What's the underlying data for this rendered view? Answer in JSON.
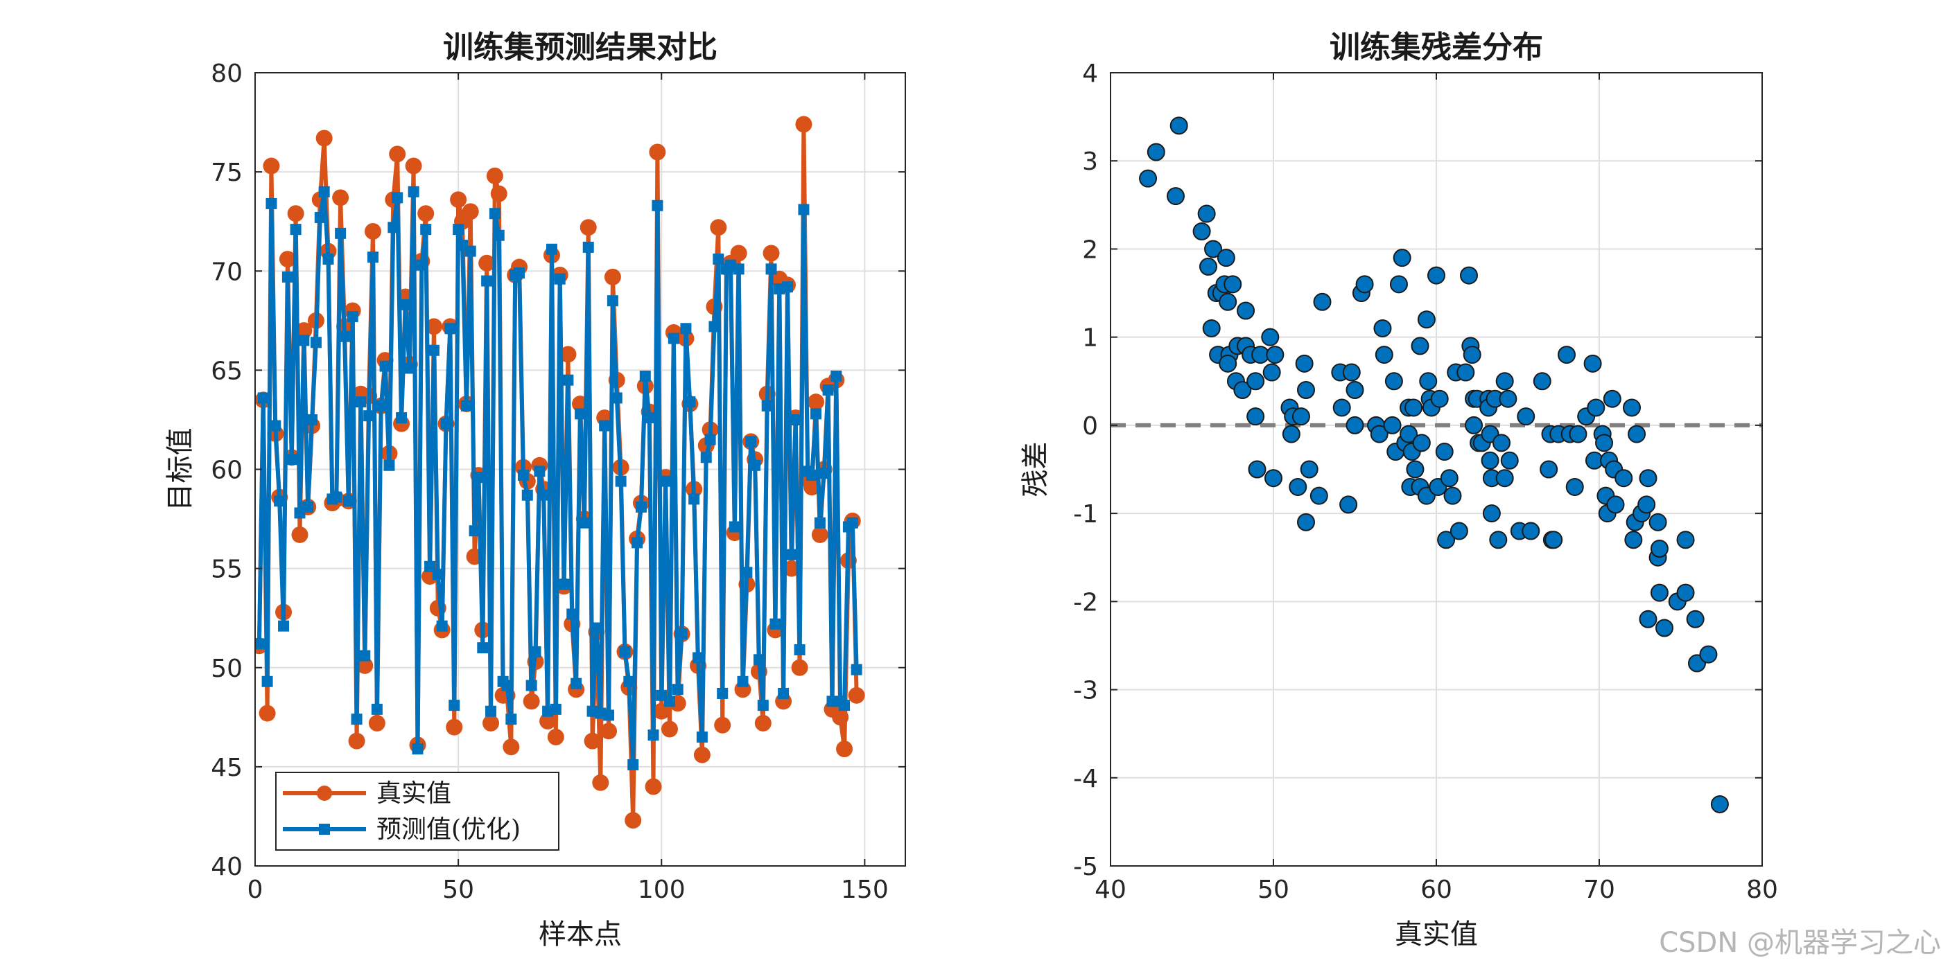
{
  "chart_data": [
    {
      "type": "line",
      "title": "训练集预测结果对比",
      "xlabel": "样本点",
      "ylabel": "目标值",
      "xlim": [
        0,
        160
      ],
      "ylim": [
        40,
        80
      ],
      "xticks": [
        0,
        50,
        100,
        150
      ],
      "yticks": [
        40,
        45,
        50,
        55,
        60,
        65,
        70,
        75,
        80
      ],
      "grid": true,
      "legend_position": "bottom-left",
      "series": [
        {
          "name": "真实值",
          "color": "#d95319",
          "marker": "circle",
          "values": [
            51.1,
            63.5,
            47.7,
            75.3,
            61.8,
            58.6,
            52.8,
            70.6,
            60.6,
            72.9,
            56.7,
            67.0,
            58.1,
            62.2,
            67.5,
            73.6,
            76.7,
            71.0,
            58.3,
            58.5,
            73.7,
            67.2,
            58.4,
            68.0,
            46.3,
            63.8,
            50.1,
            63.7,
            72.0,
            47.2,
            63.2,
            65.5,
            60.8,
            73.6,
            75.9,
            62.3,
            68.7,
            65.3,
            75.3,
            46.1,
            70.5,
            72.9,
            54.6,
            67.2,
            53.0,
            51.9,
            62.3,
            67.2,
            47.0,
            73.6,
            72.5,
            63.3,
            73.0,
            55.6,
            59.7,
            51.9,
            70.4,
            47.2,
            74.8,
            73.9,
            48.6,
            48.6,
            46.0,
            69.8,
            70.2,
            60.1,
            59.4,
            48.3,
            50.3,
            60.2,
            59.0,
            47.3,
            70.8,
            46.5,
            69.8,
            54.1,
            65.8,
            52.2,
            48.9,
            63.3,
            57.5,
            72.2,
            46.3,
            51.8,
            44.2,
            62.6,
            46.8,
            69.7,
            64.5,
            60.1,
            50.8,
            49.0,
            42.3,
            56.5,
            58.3,
            64.2,
            62.9,
            44.0,
            76.0,
            47.8,
            59.6,
            46.9,
            66.9,
            48.2,
            51.7,
            66.6,
            63.3,
            59.0,
            50.1,
            45.6,
            61.2,
            62.0,
            68.2,
            72.2,
            47.1,
            70.2,
            70.4,
            56.8,
            70.9,
            48.9,
            54.2,
            61.4,
            60.5,
            49.8,
            47.2,
            63.8,
            70.9,
            51.9,
            69.6,
            48.3,
            69.3,
            55.0,
            62.6,
            50.0,
            77.4,
            59.5,
            59.1,
            63.4,
            56.7,
            60.0,
            64.2,
            47.9,
            64.5,
            47.5,
            45.9,
            55.4,
            57.4,
            48.6
          ]
        },
        {
          "name": "预测值(优化)",
          "color": "#0072bd",
          "marker": "square",
          "values": [
            51.2,
            63.6,
            49.3,
            73.4,
            62.2,
            58.4,
            52.1,
            69.7,
            60.5,
            72.1,
            57.8,
            66.5,
            58.1,
            62.5,
            66.4,
            72.7,
            74.0,
            70.6,
            58.5,
            58.6,
            71.9,
            66.7,
            58.4,
            67.7,
            47.4,
            63.4,
            50.6,
            62.7,
            70.7,
            47.9,
            63.2,
            65.2,
            60.2,
            72.2,
            73.7,
            62.6,
            68.3,
            65.1,
            74.0,
            45.9,
            70.3,
            72.1,
            55.1,
            66.0,
            54.7,
            52.1,
            62.3,
            67.1,
            48.1,
            72.1,
            71.3,
            63.2,
            71.0,
            56.9,
            59.6,
            51.0,
            69.5,
            47.8,
            72.9,
            71.8,
            49.3,
            49.1,
            47.4,
            69.8,
            69.9,
            59.7,
            58.7,
            49.1,
            50.8,
            59.9,
            58.7,
            47.8,
            71.1,
            47.9,
            69.6,
            54.2,
            64.5,
            52.7,
            49.2,
            62.8,
            57.3,
            71.2,
            47.8,
            52.0,
            47.7,
            62.2,
            47.6,
            68.5,
            63.6,
            59.4,
            50.8,
            49.3,
            45.1,
            56.3,
            58.1,
            64.7,
            62.6,
            46.6,
            73.3,
            48.6,
            59.4,
            48.3,
            66.6,
            48.9,
            51.7,
            67.1,
            63.4,
            58.5,
            50.5,
            46.5,
            60.6,
            61.5,
            67.2,
            70.6,
            48.7,
            70.1,
            70.3,
            57.1,
            70.1,
            49.3,
            54.8,
            61.4,
            60.2,
            50.4,
            48.1,
            63.2,
            70.1,
            52.2,
            69.1,
            48.7,
            69.2,
            55.7,
            62.5,
            50.9,
            73.1,
            59.9,
            59.7,
            62.8,
            57.3,
            59.8,
            64.0,
            48.3,
            64.7,
            48.3,
            48.1,
            57.1,
            57.3,
            49.9
          ]
        }
      ]
    },
    {
      "type": "scatter",
      "title": "训练集残差分布",
      "xlabel": "真实值",
      "ylabel": "残差",
      "xlim": [
        40,
        80
      ],
      "ylim": [
        -5,
        4
      ],
      "xticks": [
        40,
        50,
        60,
        70,
        80
      ],
      "yticks": [
        -5,
        -4,
        -3,
        -2,
        -1,
        0,
        1,
        2,
        3,
        4
      ],
      "grid": true,
      "reference_line": {
        "y": 0,
        "style": "dashed",
        "color": "#808080"
      },
      "marker_color": "#0072bd",
      "points": [
        [
          42.3,
          2.8
        ],
        [
          42.8,
          3.1
        ],
        [
          44.2,
          3.4
        ],
        [
          44.0,
          2.6
        ],
        [
          45.6,
          2.2
        ],
        [
          45.9,
          2.4
        ],
        [
          46.3,
          2.0
        ],
        [
          46.0,
          1.8
        ],
        [
          46.5,
          1.5
        ],
        [
          46.8,
          1.5
        ],
        [
          47.0,
          1.6
        ],
        [
          47.2,
          1.4
        ],
        [
          47.1,
          1.9
        ],
        [
          47.5,
          1.6
        ],
        [
          46.2,
          1.1
        ],
        [
          46.6,
          0.8
        ],
        [
          47.3,
          0.8
        ],
        [
          47.8,
          0.9
        ],
        [
          47.2,
          0.7
        ],
        [
          47.7,
          0.5
        ],
        [
          48.1,
          0.4
        ],
        [
          48.3,
          0.9
        ],
        [
          48.6,
          0.8
        ],
        [
          48.3,
          1.3
        ],
        [
          48.9,
          0.5
        ],
        [
          49.2,
          0.8
        ],
        [
          49.8,
          1.0
        ],
        [
          49.9,
          0.6
        ],
        [
          48.9,
          0.1
        ],
        [
          49.0,
          -0.5
        ],
        [
          50.0,
          -0.6
        ],
        [
          50.1,
          0.8
        ],
        [
          51.0,
          0.2
        ],
        [
          51.2,
          0.1
        ],
        [
          51.7,
          0.1
        ],
        [
          51.9,
          0.7
        ],
        [
          52.0,
          0.4
        ],
        [
          51.1,
          -0.1
        ],
        [
          51.5,
          -0.7
        ],
        [
          52.2,
          -0.5
        ],
        [
          52.8,
          -0.8
        ],
        [
          53.0,
          1.4
        ],
        [
          52.0,
          -1.1
        ],
        [
          54.1,
          0.6
        ],
        [
          54.2,
          0.2
        ],
        [
          54.6,
          -0.9
        ],
        [
          54.8,
          0.6
        ],
        [
          55.0,
          0.4
        ],
        [
          55.0,
          0.0
        ],
        [
          55.4,
          1.5
        ],
        [
          55.6,
          1.6
        ],
        [
          56.3,
          0.0
        ],
        [
          56.5,
          -0.1
        ],
        [
          56.7,
          1.1
        ],
        [
          56.8,
          0.8
        ],
        [
          57.3,
          0.0
        ],
        [
          57.4,
          0.5
        ],
        [
          57.5,
          -0.3
        ],
        [
          57.7,
          1.6
        ],
        [
          57.9,
          1.9
        ],
        [
          58.1,
          -0.2
        ],
        [
          58.3,
          0.2
        ],
        [
          58.3,
          -0.1
        ],
        [
          58.4,
          -0.7
        ],
        [
          58.5,
          -0.3
        ],
        [
          58.6,
          0.2
        ],
        [
          58.7,
          -0.5
        ],
        [
          59.0,
          -0.7
        ],
        [
          59.0,
          0.9
        ],
        [
          59.1,
          -0.2
        ],
        [
          59.4,
          -0.8
        ],
        [
          59.4,
          1.2
        ],
        [
          59.5,
          0.5
        ],
        [
          59.6,
          0.3
        ],
        [
          59.7,
          0.2
        ],
        [
          60.0,
          1.7
        ],
        [
          60.1,
          -0.7
        ],
        [
          60.2,
          0.3
        ],
        [
          60.5,
          -0.3
        ],
        [
          60.6,
          -1.3
        ],
        [
          60.8,
          -0.6
        ],
        [
          61.0,
          -0.8
        ],
        [
          61.2,
          0.6
        ],
        [
          61.4,
          -1.2
        ],
        [
          61.8,
          0.6
        ],
        [
          62.0,
          1.7
        ],
        [
          62.1,
          0.9
        ],
        [
          62.2,
          0.8
        ],
        [
          62.3,
          0.3
        ],
        [
          62.3,
          0.0
        ],
        [
          62.5,
          0.3
        ],
        [
          62.6,
          -0.2
        ],
        [
          62.8,
          -0.2
        ],
        [
          63.2,
          0.3
        ],
        [
          63.2,
          0.2
        ],
        [
          63.3,
          -0.1
        ],
        [
          63.3,
          -0.4
        ],
        [
          63.4,
          -0.6
        ],
        [
          63.4,
          -1.0
        ],
        [
          63.6,
          0.3
        ],
        [
          63.8,
          -1.3
        ],
        [
          64.0,
          -0.2
        ],
        [
          64.2,
          0.5
        ],
        [
          64.2,
          -0.6
        ],
        [
          64.4,
          0.3
        ],
        [
          64.5,
          -0.4
        ],
        [
          65.1,
          -1.2
        ],
        [
          65.5,
          0.1
        ],
        [
          65.8,
          -1.2
        ],
        [
          66.5,
          0.5
        ],
        [
          66.9,
          -0.5
        ],
        [
          67.0,
          -0.1
        ],
        [
          67.1,
          -1.3
        ],
        [
          67.5,
          -0.1
        ],
        [
          67.2,
          -1.3
        ],
        [
          68.0,
          0.8
        ],
        [
          68.2,
          -0.1
        ],
        [
          68.5,
          -0.7
        ],
        [
          68.7,
          -0.1
        ],
        [
          69.2,
          0.1
        ],
        [
          69.6,
          0.7
        ],
        [
          69.7,
          -0.4
        ],
        [
          69.8,
          0.2
        ],
        [
          70.2,
          -0.1
        ],
        [
          70.3,
          -0.2
        ],
        [
          70.4,
          -0.8
        ],
        [
          70.5,
          -1.0
        ],
        [
          70.6,
          -0.4
        ],
        [
          70.8,
          0.3
        ],
        [
          70.9,
          -0.5
        ],
        [
          71.0,
          -0.9
        ],
        [
          71.5,
          -0.6
        ],
        [
          72.0,
          0.2
        ],
        [
          72.1,
          -1.3
        ],
        [
          72.2,
          -1.1
        ],
        [
          72.3,
          -0.1
        ],
        [
          72.6,
          -1.0
        ],
        [
          72.9,
          -0.9
        ],
        [
          73.0,
          -0.6
        ],
        [
          73.0,
          -2.2
        ],
        [
          73.6,
          -1.1
        ],
        [
          73.6,
          -1.5
        ],
        [
          73.7,
          -1.4
        ],
        [
          73.7,
          -1.9
        ],
        [
          74.0,
          -2.3
        ],
        [
          74.8,
          -2.0
        ],
        [
          75.3,
          -1.9
        ],
        [
          75.3,
          -1.3
        ],
        [
          75.9,
          -2.2
        ],
        [
          76.0,
          -2.7
        ],
        [
          76.7,
          -2.6
        ],
        [
          77.4,
          -4.3
        ]
      ]
    }
  ],
  "watermark": "CSDN @机器学习之心"
}
